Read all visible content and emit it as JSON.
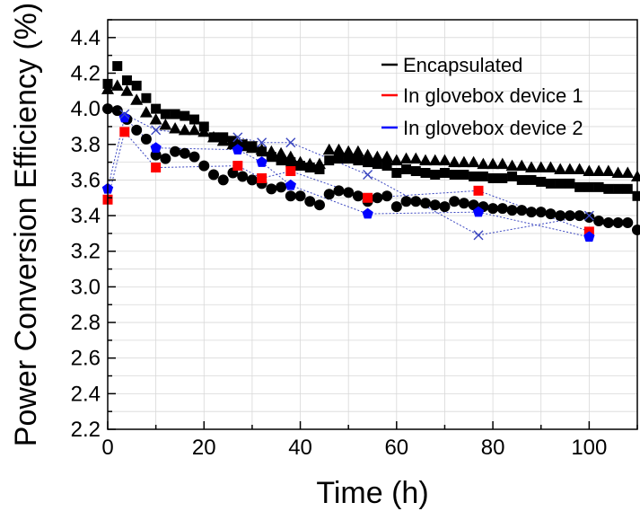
{
  "chart_data": {
    "type": "scatter",
    "title": "",
    "xlabel": "Time (h)",
    "ylabel": "Power Conversion Efficiency (%)",
    "xlim": [
      0,
      110
    ],
    "ylim": [
      2.2,
      4.5
    ],
    "x_ticks": [
      0,
      20,
      40,
      60,
      80,
      100
    ],
    "y_ticks": [
      2.2,
      2.4,
      2.6,
      2.8,
      3.0,
      3.2,
      3.4,
      3.6,
      3.8,
      4.0,
      4.2,
      4.4
    ],
    "grid": true,
    "legend_placement": "top-right",
    "legend": [
      {
        "label": "Encapsulated",
        "color": "#000000"
      },
      {
        "label": "In glovebox device 1",
        "color": "#ff0000"
      },
      {
        "label": "In glovebox device 2",
        "color": "#0000ff"
      }
    ],
    "series": [
      {
        "marker": "square",
        "color": "#000000",
        "line": false,
        "points": [
          [
            0,
            4.14
          ],
          [
            2,
            4.24
          ],
          [
            4,
            4.16
          ],
          [
            6,
            4.13
          ],
          [
            8,
            4.06
          ],
          [
            10,
            4.0
          ],
          [
            12,
            3.97
          ],
          [
            14,
            3.97
          ],
          [
            16,
            3.96
          ],
          [
            18,
            3.94
          ],
          [
            20,
            3.9
          ],
          [
            22,
            3.84
          ],
          [
            24,
            3.84
          ],
          [
            26,
            3.82
          ],
          [
            28,
            3.8
          ],
          [
            30,
            3.79
          ],
          [
            32,
            3.76
          ],
          [
            34,
            3.73
          ],
          [
            36,
            3.71
          ],
          [
            38,
            3.7
          ],
          [
            40,
            3.68
          ],
          [
            42,
            3.67
          ],
          [
            44,
            3.66
          ],
          [
            46,
            3.71
          ],
          [
            48,
            3.72
          ],
          [
            50,
            3.72
          ],
          [
            52,
            3.71
          ],
          [
            54,
            3.7
          ],
          [
            56,
            3.69
          ],
          [
            58,
            3.68
          ],
          [
            60,
            3.64
          ],
          [
            62,
            3.66
          ],
          [
            64,
            3.65
          ],
          [
            66,
            3.64
          ],
          [
            68,
            3.63
          ],
          [
            70,
            3.64
          ],
          [
            72,
            3.63
          ],
          [
            74,
            3.63
          ],
          [
            76,
            3.62
          ],
          [
            78,
            3.62
          ],
          [
            80,
            3.61
          ],
          [
            82,
            3.61
          ],
          [
            84,
            3.62
          ],
          [
            86,
            3.6
          ],
          [
            88,
            3.6
          ],
          [
            90,
            3.59
          ],
          [
            92,
            3.58
          ],
          [
            94,
            3.58
          ],
          [
            96,
            3.58
          ],
          [
            98,
            3.56
          ],
          [
            100,
            3.56
          ],
          [
            102,
            3.56
          ],
          [
            104,
            3.55
          ],
          [
            106,
            3.55
          ],
          [
            108,
            3.55
          ],
          [
            110,
            3.51
          ]
        ]
      },
      {
        "marker": "triangle",
        "color": "#000000",
        "line": false,
        "points": [
          [
            0,
            4.11
          ],
          [
            2,
            4.13
          ],
          [
            4,
            4.1
          ],
          [
            6,
            4.05
          ],
          [
            8,
            3.98
          ],
          [
            10,
            3.94
          ],
          [
            12,
            3.91
          ],
          [
            14,
            3.89
          ],
          [
            16,
            3.88
          ],
          [
            18,
            3.88
          ],
          [
            20,
            3.87
          ],
          [
            22,
            3.84
          ],
          [
            24,
            3.82
          ],
          [
            26,
            3.8
          ],
          [
            28,
            3.79
          ],
          [
            30,
            3.78
          ],
          [
            32,
            3.77
          ],
          [
            34,
            3.76
          ],
          [
            36,
            3.75
          ],
          [
            38,
            3.73
          ],
          [
            40,
            3.7
          ],
          [
            42,
            3.69
          ],
          [
            44,
            3.69
          ],
          [
            46,
            3.77
          ],
          [
            48,
            3.77
          ],
          [
            50,
            3.76
          ],
          [
            52,
            3.76
          ],
          [
            54,
            3.74
          ],
          [
            56,
            3.73
          ],
          [
            58,
            3.73
          ],
          [
            60,
            3.71
          ],
          [
            62,
            3.72
          ],
          [
            64,
            3.72
          ],
          [
            66,
            3.71
          ],
          [
            68,
            3.71
          ],
          [
            70,
            3.71
          ],
          [
            72,
            3.7
          ],
          [
            74,
            3.7
          ],
          [
            76,
            3.7
          ],
          [
            78,
            3.69
          ],
          [
            80,
            3.69
          ],
          [
            82,
            3.69
          ],
          [
            84,
            3.68
          ],
          [
            86,
            3.68
          ],
          [
            88,
            3.67
          ],
          [
            90,
            3.67
          ],
          [
            92,
            3.67
          ],
          [
            94,
            3.66
          ],
          [
            96,
            3.66
          ],
          [
            98,
            3.66
          ],
          [
            100,
            3.65
          ],
          [
            102,
            3.65
          ],
          [
            104,
            3.65
          ],
          [
            106,
            3.64
          ],
          [
            108,
            3.64
          ],
          [
            110,
            3.62
          ]
        ]
      },
      {
        "marker": "circle",
        "color": "#000000",
        "line": false,
        "points": [
          [
            0,
            4.0
          ],
          [
            2,
            3.99
          ],
          [
            4,
            3.94
          ],
          [
            6,
            3.88
          ],
          [
            8,
            3.83
          ],
          [
            10,
            3.74
          ],
          [
            12,
            3.72
          ],
          [
            14,
            3.76
          ],
          [
            16,
            3.75
          ],
          [
            18,
            3.73
          ],
          [
            20,
            3.68
          ],
          [
            22,
            3.63
          ],
          [
            24,
            3.6
          ],
          [
            26,
            3.64
          ],
          [
            28,
            3.62
          ],
          [
            30,
            3.6
          ],
          [
            32,
            3.58
          ],
          [
            34,
            3.55
          ],
          [
            36,
            3.56
          ],
          [
            38,
            3.51
          ],
          [
            40,
            3.51
          ],
          [
            42,
            3.48
          ],
          [
            44,
            3.46
          ],
          [
            46,
            3.52
          ],
          [
            48,
            3.54
          ],
          [
            50,
            3.53
          ],
          [
            52,
            3.51
          ],
          [
            54,
            3.48
          ],
          [
            56,
            3.5
          ],
          [
            58,
            3.51
          ],
          [
            60,
            3.45
          ],
          [
            62,
            3.48
          ],
          [
            64,
            3.48
          ],
          [
            66,
            3.47
          ],
          [
            68,
            3.46
          ],
          [
            70,
            3.45
          ],
          [
            72,
            3.48
          ],
          [
            74,
            3.47
          ],
          [
            76,
            3.46
          ],
          [
            78,
            3.45
          ],
          [
            80,
            3.44
          ],
          [
            82,
            3.44
          ],
          [
            84,
            3.43
          ],
          [
            86,
            3.43
          ],
          [
            88,
            3.42
          ],
          [
            90,
            3.42
          ],
          [
            92,
            3.41
          ],
          [
            94,
            3.4
          ],
          [
            96,
            3.4
          ],
          [
            98,
            3.4
          ],
          [
            100,
            3.39
          ],
          [
            102,
            3.37
          ],
          [
            104,
            3.36
          ],
          [
            106,
            3.36
          ],
          [
            108,
            3.36
          ],
          [
            110,
            3.32
          ]
        ]
      },
      {
        "marker": "square",
        "color": "#ff0000",
        "line": true,
        "line_color": "#3a46c0",
        "points": [
          [
            0,
            3.49
          ],
          [
            3.5,
            3.87
          ],
          [
            10,
            3.67
          ],
          [
            27,
            3.68
          ],
          [
            32,
            3.61
          ],
          [
            38,
            3.65
          ],
          [
            54,
            3.5
          ],
          [
            77,
            3.54
          ],
          [
            100,
            3.31
          ]
        ]
      },
      {
        "marker": "pentagon",
        "color": "#0000ff",
        "line": true,
        "line_color": "#3a46c0",
        "points": [
          [
            0,
            3.55
          ],
          [
            3.5,
            3.95
          ],
          [
            10,
            3.78
          ],
          [
            27,
            3.77
          ],
          [
            32,
            3.7
          ],
          [
            38,
            3.57
          ],
          [
            54,
            3.41
          ],
          [
            77,
            3.42
          ],
          [
            100,
            3.28
          ]
        ]
      },
      {
        "marker": "x",
        "color": "#3a46c0",
        "line": true,
        "line_color": "#3a46c0",
        "points": [
          [
            3.5,
            3.97
          ],
          [
            10,
            3.88
          ],
          [
            27,
            3.84
          ],
          [
            32,
            3.81
          ],
          [
            38,
            3.81
          ],
          [
            54,
            3.63
          ],
          [
            77,
            3.29
          ],
          [
            100,
            3.4
          ]
        ]
      }
    ]
  }
}
